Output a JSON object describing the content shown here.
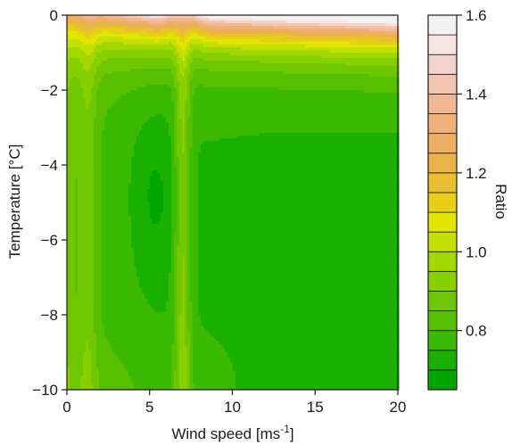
{
  "chart_data": {
    "type": "heatmap",
    "title": "",
    "xlabel": "Wind speed [ms",
    "xlabel_sup": "-1",
    "xlabel_close": "]",
    "ylabel": "Temperature [°C]",
    "xlim": [
      0,
      20
    ],
    "ylim": [
      -10,
      0
    ],
    "x_ticks": [
      0,
      5,
      10,
      15,
      20
    ],
    "x_tick_labels": [
      "0",
      "5",
      "10",
      "15",
      "20"
    ],
    "y_ticks": [
      0,
      -2,
      -4,
      -6,
      -8,
      -10
    ],
    "y_tick_labels": [
      "0",
      "−2",
      "−4",
      "−6",
      "−8",
      "−10"
    ],
    "colorbar": {
      "label": "Ratio",
      "min": 0.65,
      "max": 1.6,
      "ticks": [
        0.8,
        1.0,
        1.2,
        1.4,
        1.6
      ],
      "tick_labels": [
        "0.8",
        "1.0",
        "1.2",
        "1.4",
        "1.6"
      ],
      "levels": [
        0.65,
        0.7,
        0.75,
        0.8,
        0.85,
        0.9,
        0.95,
        1.0,
        1.05,
        1.1,
        1.15,
        1.2,
        1.25,
        1.3,
        1.35,
        1.4,
        1.45,
        1.5,
        1.55,
        1.6
      ],
      "colors": [
        "#00a600",
        "#1ab000",
        "#3bb800",
        "#55bf00",
        "#6ec700",
        "#88cf00",
        "#a3d700",
        "#c4df00",
        "#e3e400",
        "#e8cf17",
        "#eac031",
        "#ebb44a",
        "#edaf63",
        "#efb07c",
        "#f1b896",
        "#f3c5b0",
        "#f5d3ca",
        "#f8e4e1",
        "#f2f2f2"
      ]
    },
    "field_samples": {
      "x": [
        0,
        1,
        2,
        3,
        4,
        5,
        6,
        7,
        8,
        10,
        13,
        16,
        20
      ],
      "y": [
        0,
        -1,
        -2,
        -3,
        -4,
        -5,
        -6,
        -7,
        -8,
        -9,
        -10
      ],
      "z_at_y_minus_5": [
        0.95,
        0.93,
        0.9,
        0.87,
        0.84,
        0.8,
        0.84,
        0.95,
        0.85,
        0.8,
        0.75,
        0.72,
        0.72
      ],
      "z_at_y_0": [
        1.05,
        1.05,
        1.1,
        1.15,
        1.22,
        1.3,
        1.35,
        1.1,
        1.4,
        1.5,
        1.55,
        1.58,
        1.6
      ]
    }
  }
}
